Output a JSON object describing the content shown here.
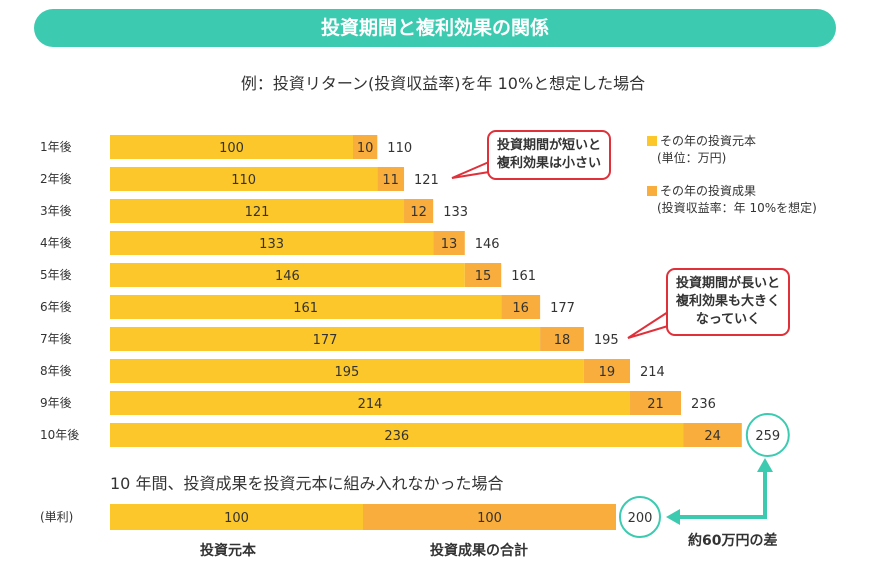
{
  "title": "投資期間と複利効果の関係",
  "subtitle": "例：投資リターン(投資収益率)を年 10%と想定した場合",
  "colors": {
    "principal": "#fcc72a",
    "gain": "#f8ad3c",
    "accent": "#3ccbb0",
    "bubble_border": "#e0303a"
  },
  "legend": {
    "principal": "その年の投資元本",
    "principal_note": "(単位：万円)",
    "gain": "その年の投資成果",
    "gain_note": "(投資収益率：年 10%を想定)"
  },
  "bubbles": {
    "short": [
      "投資期間が短いと",
      "複利効果は小さい"
    ],
    "long": [
      "投資期間が長いと",
      "複利効果も大きく",
      "なっていく"
    ]
  },
  "chart_data": {
    "type": "bar",
    "stacked": true,
    "orientation": "horizontal",
    "categories": [
      "1年後",
      "2年後",
      "3年後",
      "4年後",
      "5年後",
      "6年後",
      "7年後",
      "8年後",
      "9年後",
      "10年後"
    ],
    "series": [
      {
        "name": "その年の投資元本",
        "values": [
          100,
          110,
          121,
          133,
          146,
          161,
          177,
          195,
          214,
          236
        ]
      },
      {
        "name": "その年の投資成果",
        "values": [
          10,
          11,
          12,
          13,
          15,
          16,
          18,
          19,
          21,
          24
        ]
      }
    ],
    "totals": [
      110,
      121,
      133,
      146,
      161,
      177,
      195,
      214,
      236,
      259
    ],
    "simple": {
      "heading": "10 年間、投資成果を投資元本に組み入れなかった場合",
      "category": "(単利)",
      "principal": 100,
      "gain": 100,
      "total": 200,
      "principal_label": "投資元本",
      "gain_label": "投資成果の合計"
    },
    "difference_label": "約60万円の差"
  }
}
